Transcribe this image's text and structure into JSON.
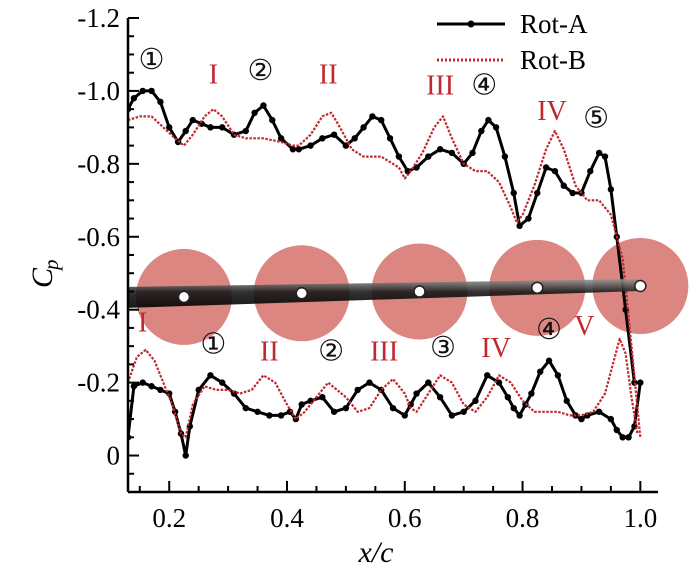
{
  "chart_data": {
    "type": "line",
    "xlabel": "x/c",
    "ylabel_main": "C",
    "ylabel_sub": "p",
    "xlim": [
      0.13,
      1.03
    ],
    "ylim": [
      0.1,
      -1.2
    ],
    "y_reversed": true,
    "x_ticks": [
      {
        "value": 0.2,
        "label": "0.2"
      },
      {
        "value": 0.4,
        "label": "0.4"
      },
      {
        "value": 0.6,
        "label": "0.6"
      },
      {
        "value": 0.8,
        "label": "0.8"
      },
      {
        "value": 1.0,
        "label": "1.0"
      }
    ],
    "y_ticks": [
      {
        "value": -1.2,
        "label": "-1.2"
      },
      {
        "value": -1.0,
        "label": "-1.0"
      },
      {
        "value": -0.8,
        "label": "-0.8"
      },
      {
        "value": -0.6,
        "label": "-0.6"
      },
      {
        "value": -0.4,
        "label": "-0.4"
      },
      {
        "value": -0.2,
        "label": "-0.2"
      },
      {
        "value": 0.0,
        "label": "0"
      }
    ],
    "legend": {
      "position": "top-right",
      "entries": [
        {
          "name": "Rot-A",
          "color": "#000000",
          "style": "solid-dots"
        },
        {
          "name": "Rot-B",
          "color": "#c0282d",
          "style": "dotted"
        }
      ]
    },
    "series": [
      {
        "name": "Rot-A",
        "color": "#000000",
        "upper": {
          "x": [
            0.13,
            0.14,
            0.155,
            0.17,
            0.185,
            0.2,
            0.215,
            0.228,
            0.24,
            0.255,
            0.27,
            0.29,
            0.31,
            0.33,
            0.345,
            0.36,
            0.375,
            0.39,
            0.41,
            0.42,
            0.44,
            0.46,
            0.48,
            0.5,
            0.515,
            0.53,
            0.545,
            0.56,
            0.575,
            0.59,
            0.605,
            0.62,
            0.64,
            0.66,
            0.68,
            0.7,
            0.715,
            0.73,
            0.742,
            0.755,
            0.77,
            0.785,
            0.795,
            0.81,
            0.825,
            0.84,
            0.855,
            0.87,
            0.885,
            0.9,
            0.915,
            0.93,
            0.94,
            0.95,
            0.96,
            0.975,
            0.99
          ],
          "y": [
            -0.95,
            -0.98,
            -1.0,
            -1.0,
            -0.97,
            -0.9,
            -0.86,
            -0.89,
            -0.92,
            -0.91,
            -0.9,
            -0.9,
            -0.88,
            -0.89,
            -0.94,
            -0.96,
            -0.92,
            -0.87,
            -0.84,
            -0.84,
            -0.85,
            -0.87,
            -0.88,
            -0.85,
            -0.87,
            -0.9,
            -0.93,
            -0.92,
            -0.87,
            -0.82,
            -0.78,
            -0.79,
            -0.82,
            -0.84,
            -0.83,
            -0.8,
            -0.83,
            -0.89,
            -0.92,
            -0.9,
            -0.82,
            -0.72,
            -0.63,
            -0.65,
            -0.72,
            -0.79,
            -0.78,
            -0.74,
            -0.72,
            -0.72,
            -0.78,
            -0.83,
            -0.82,
            -0.73,
            -0.6,
            -0.4,
            -0.2
          ]
        },
        "lower": {
          "x": [
            0.13,
            0.14,
            0.155,
            0.17,
            0.185,
            0.2,
            0.21,
            0.22,
            0.228,
            0.235,
            0.25,
            0.27,
            0.29,
            0.31,
            0.33,
            0.35,
            0.37,
            0.39,
            0.405,
            0.415,
            0.425,
            0.44,
            0.46,
            0.48,
            0.5,
            0.52,
            0.54,
            0.56,
            0.58,
            0.6,
            0.61,
            0.62,
            0.64,
            0.66,
            0.68,
            0.7,
            0.72,
            0.74,
            0.76,
            0.775,
            0.785,
            0.795,
            0.805,
            0.815,
            0.83,
            0.845,
            0.86,
            0.875,
            0.89,
            0.9,
            0.91,
            0.93,
            0.95,
            0.96,
            0.97,
            0.98,
            0.99,
            1.0
          ],
          "y": [
            -0.05,
            -0.19,
            -0.2,
            -0.19,
            -0.18,
            -0.17,
            -0.12,
            -0.06,
            0.0,
            -0.08,
            -0.18,
            -0.22,
            -0.2,
            -0.17,
            -0.13,
            -0.12,
            -0.11,
            -0.11,
            -0.12,
            -0.1,
            -0.14,
            -0.15,
            -0.16,
            -0.12,
            -0.13,
            -0.18,
            -0.2,
            -0.18,
            -0.13,
            -0.11,
            -0.14,
            -0.17,
            -0.2,
            -0.16,
            -0.11,
            -0.12,
            -0.15,
            -0.22,
            -0.2,
            -0.16,
            -0.13,
            -0.11,
            -0.14,
            -0.17,
            -0.23,
            -0.26,
            -0.22,
            -0.15,
            -0.11,
            -0.1,
            -0.11,
            -0.12,
            -0.1,
            -0.07,
            -0.05,
            -0.05,
            -0.08,
            -0.2
          ]
        }
      },
      {
        "name": "Rot-B",
        "color": "#c0282d",
        "upper": {
          "x": [
            0.13,
            0.15,
            0.17,
            0.19,
            0.21,
            0.225,
            0.24,
            0.26,
            0.275,
            0.29,
            0.31,
            0.33,
            0.36,
            0.39,
            0.41,
            0.42,
            0.44,
            0.46,
            0.475,
            0.49,
            0.51,
            0.53,
            0.56,
            0.59,
            0.6,
            0.61,
            0.63,
            0.65,
            0.665,
            0.68,
            0.7,
            0.72,
            0.74,
            0.76,
            0.78,
            0.79,
            0.8,
            0.82,
            0.84,
            0.855,
            0.87,
            0.89,
            0.91,
            0.93,
            0.95,
            0.97,
            0.985,
            1.0
          ],
          "y": [
            -0.92,
            -0.93,
            -0.93,
            -0.9,
            -0.87,
            -0.85,
            -0.88,
            -0.93,
            -0.95,
            -0.93,
            -0.88,
            -0.87,
            -0.87,
            -0.86,
            -0.85,
            -0.85,
            -0.88,
            -0.93,
            -0.94,
            -0.9,
            -0.84,
            -0.82,
            -0.82,
            -0.79,
            -0.76,
            -0.78,
            -0.83,
            -0.9,
            -0.93,
            -0.87,
            -0.8,
            -0.78,
            -0.78,
            -0.75,
            -0.68,
            -0.64,
            -0.66,
            -0.74,
            -0.84,
            -0.89,
            -0.84,
            -0.74,
            -0.7,
            -0.7,
            -0.66,
            -0.54,
            -0.3,
            -0.05
          ]
        },
        "lower": {
          "x": [
            0.13,
            0.145,
            0.16,
            0.175,
            0.19,
            0.205,
            0.22,
            0.228,
            0.24,
            0.26,
            0.28,
            0.3,
            0.32,
            0.34,
            0.36,
            0.38,
            0.4,
            0.415,
            0.43,
            0.45,
            0.47,
            0.5,
            0.52,
            0.54,
            0.56,
            0.58,
            0.6,
            0.61,
            0.62,
            0.64,
            0.66,
            0.68,
            0.7,
            0.72,
            0.74,
            0.76,
            0.78,
            0.8,
            0.82,
            0.84,
            0.86,
            0.88,
            0.9,
            0.92,
            0.94,
            0.955,
            0.965,
            0.975,
            0.985,
            0.995
          ],
          "y": [
            -0.2,
            -0.27,
            -0.29,
            -0.26,
            -0.2,
            -0.14,
            -0.06,
            -0.05,
            -0.14,
            -0.19,
            -0.18,
            -0.18,
            -0.17,
            -0.18,
            -0.22,
            -0.2,
            -0.14,
            -0.1,
            -0.12,
            -0.16,
            -0.2,
            -0.16,
            -0.12,
            -0.13,
            -0.18,
            -0.21,
            -0.17,
            -0.13,
            -0.12,
            -0.17,
            -0.22,
            -0.2,
            -0.14,
            -0.12,
            -0.16,
            -0.22,
            -0.2,
            -0.15,
            -0.12,
            -0.12,
            -0.12,
            -0.11,
            -0.11,
            -0.12,
            -0.17,
            -0.26,
            -0.32,
            -0.28,
            -0.16,
            -0.06
          ]
        }
      }
    ],
    "annotations_black": [
      {
        "text": "①",
        "x": 0.17,
        "y": -1.06
      },
      {
        "text": "②",
        "x": 0.355,
        "y": -1.03
      },
      {
        "text": "④",
        "x": 0.735,
        "y": -0.99
      },
      {
        "text": "⑤",
        "x": 0.925,
        "y": -0.9
      },
      {
        "text": "①",
        "x": 0.275,
        "y": -0.28
      },
      {
        "text": "②",
        "x": 0.475,
        "y": -0.26
      },
      {
        "text": "③",
        "x": 0.665,
        "y": -0.27
      },
      {
        "text": "④",
        "x": 0.845,
        "y": -0.32
      }
    ],
    "annotations_red": [
      {
        "text": "I",
        "x": 0.275,
        "y": -1.02
      },
      {
        "text": "II",
        "x": 0.47,
        "y": -1.02
      },
      {
        "text": "III",
        "x": 0.66,
        "y": -0.99
      },
      {
        "text": "IV",
        "x": 0.85,
        "y": -0.92
      },
      {
        "text": "I",
        "x": 0.155,
        "y": -0.34
      },
      {
        "text": "II",
        "x": 0.37,
        "y": -0.26
      },
      {
        "text": "III",
        "x": 0.565,
        "y": -0.26
      },
      {
        "text": "IV",
        "x": 0.755,
        "y": -0.27
      },
      {
        "text": "V",
        "x": 0.905,
        "y": -0.33
      }
    ],
    "rotors": [
      {
        "x": 0.225,
        "y": -0.435
      },
      {
        "x": 0.425,
        "y": -0.445
      },
      {
        "x": 0.625,
        "y": -0.45
      },
      {
        "x": 0.825,
        "y": -0.46
      },
      {
        "x": 1.0,
        "y": -0.465
      }
    ],
    "rotor_color": "#d9807a"
  }
}
